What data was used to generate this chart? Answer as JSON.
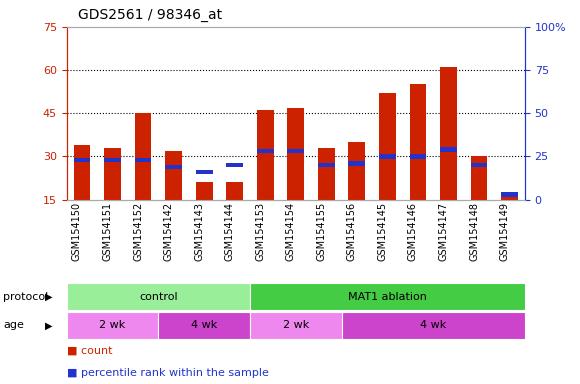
{
  "title": "GDS2561 / 98346_at",
  "categories": [
    "GSM154150",
    "GSM154151",
    "GSM154152",
    "GSM154142",
    "GSM154143",
    "GSM154144",
    "GSM154153",
    "GSM154154",
    "GSM154155",
    "GSM154156",
    "GSM154145",
    "GSM154146",
    "GSM154147",
    "GSM154148",
    "GSM154149"
  ],
  "red_values": [
    34,
    33,
    45,
    32,
    21,
    21,
    46,
    47,
    33,
    35,
    52,
    55,
    61,
    30,
    17
  ],
  "blue_values": [
    23,
    23,
    23,
    19,
    16,
    20,
    28,
    28,
    20,
    21,
    25,
    25,
    29,
    20,
    3
  ],
  "ylim_left": [
    15,
    75
  ],
  "ylim_right": [
    0,
    100
  ],
  "yticks_left": [
    15,
    30,
    45,
    60,
    75
  ],
  "yticks_right": [
    0,
    25,
    50,
    75,
    100
  ],
  "bar_color_red": "#cc2200",
  "bar_color_blue": "#2233cc",
  "bar_width": 0.55,
  "plot_bg": "#ffffff",
  "gray_bg": "#cccccc",
  "protocol_groups": [
    {
      "label": "control",
      "start": 0,
      "end": 6,
      "color": "#99ee99"
    },
    {
      "label": "MAT1 ablation",
      "start": 6,
      "end": 15,
      "color": "#44cc44"
    }
  ],
  "age_groups": [
    {
      "label": "2 wk",
      "start": 0,
      "end": 3,
      "color": "#ee88ee"
    },
    {
      "label": "4 wk",
      "start": 3,
      "end": 6,
      "color": "#cc44cc"
    },
    {
      "label": "2 wk",
      "start": 6,
      "end": 9,
      "color": "#ee88ee"
    },
    {
      "label": "4 wk",
      "start": 9,
      "end": 15,
      "color": "#cc44cc"
    }
  ],
  "right_axis_color": "#2233cc",
  "left_axis_color": "#cc2200",
  "blue_bar_height": 1.5
}
